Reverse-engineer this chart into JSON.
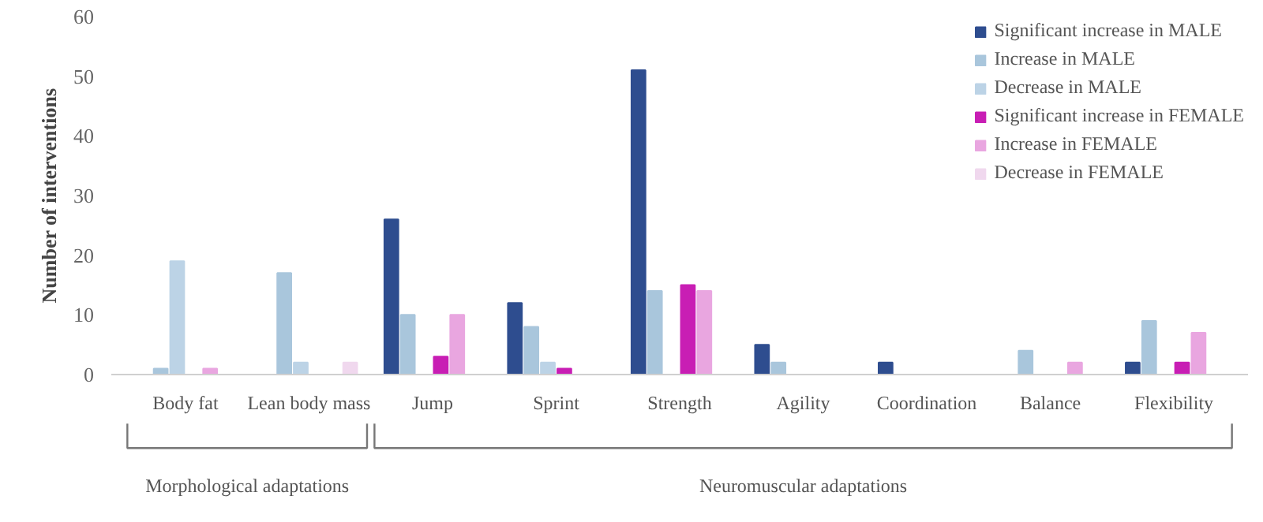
{
  "chart_data": {
    "type": "bar",
    "ylabel": "Number of interventions",
    "categories": [
      "Body fat",
      "Lean body mass",
      "Jump",
      "Sprint",
      "Strength",
      "Agility",
      "Coordination",
      "Balance",
      "Flexibility"
    ],
    "series": [
      {
        "name": "Significant increase in MALE",
        "color": "#2e4d8f",
        "values": [
          0,
          0,
          26,
          12,
          51,
          5,
          2,
          0,
          2
        ]
      },
      {
        "name": "Increase in MALE",
        "color": "#a9c6dc",
        "values": [
          1,
          17,
          10,
          8,
          14,
          2,
          0,
          4,
          9
        ]
      },
      {
        "name": "Decrease in MALE",
        "color": "#bcd3e6",
        "values": [
          19,
          2,
          0,
          2,
          0,
          0,
          0,
          0,
          0
        ]
      },
      {
        "name": "Significant increase in FEMALE",
        "color": "#c81eb4",
        "values": [
          0,
          0,
          3,
          1,
          15,
          0,
          0,
          0,
          2
        ]
      },
      {
        "name": "Increase in FEMALE",
        "color": "#e9a6e0",
        "values": [
          1,
          0,
          10,
          0,
          14,
          0,
          0,
          2,
          7
        ]
      },
      {
        "name": "Decrease in FEMALE",
        "color": "#f0d8ee",
        "values": [
          0,
          2,
          0,
          0,
          0,
          0,
          0,
          0,
          0
        ]
      }
    ],
    "ylim": [
      0,
      60
    ],
    "yticks": [
      0,
      10,
      20,
      30,
      40,
      50,
      60
    ],
    "grid": false,
    "legend": "top right",
    "annotations": [
      "Morphological adaptations",
      "Neuromuscular adaptations"
    ]
  }
}
